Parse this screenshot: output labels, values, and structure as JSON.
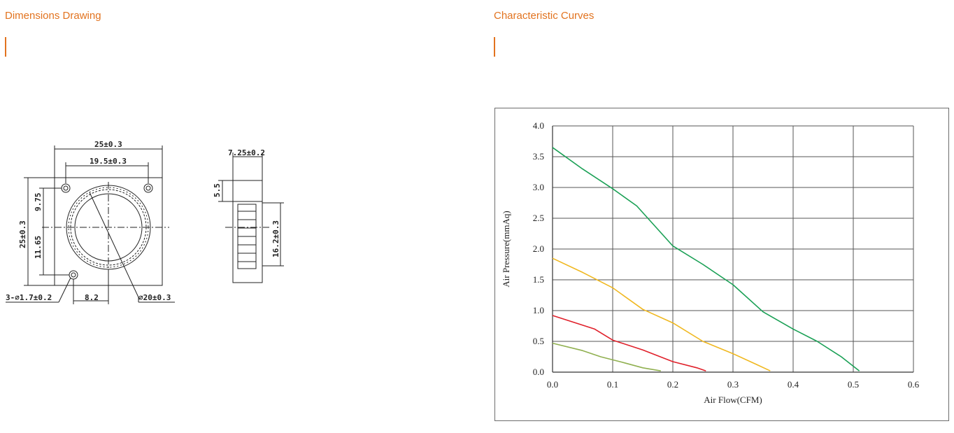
{
  "sections": {
    "dimensions_title": "Dimensions Drawing",
    "curves_title": "Characteristic Curves"
  },
  "drawing": {
    "width_label": "25±0.3",
    "hole_spacing_label": "19.5±0.3",
    "height_label": "25±0.3",
    "upper_offset_label": "9.75",
    "lower_offset_label": "11.65",
    "holes_label": "3-⌀1.7±0.2",
    "hole_x_label": "8.2",
    "bore_label": "⌀20±0.3",
    "thickness_label": "7.25±0.2",
    "lip_label": "5.5",
    "inner_height_label": "16.2±0.3"
  },
  "chart_data": {
    "type": "line",
    "xlabel": "Air Flow(CFM)",
    "ylabel": "Air Pressure(mmAq)",
    "xlim": [
      0,
      0.6
    ],
    "ylim": [
      0,
      4.0
    ],
    "x_ticks": [
      "0.0",
      "0.1",
      "0.2",
      "0.3",
      "0.4",
      "0.5",
      "0.6"
    ],
    "y_ticks": [
      "0.0",
      "0.5",
      "1.0",
      "1.5",
      "2.0",
      "2.5",
      "3.0",
      "3.5",
      "4.0"
    ],
    "grid": true,
    "series": [
      {
        "color": "#1aa055",
        "points": [
          [
            0.0,
            3.65
          ],
          [
            0.05,
            3.3
          ],
          [
            0.1,
            2.98
          ],
          [
            0.14,
            2.7
          ],
          [
            0.2,
            2.05
          ],
          [
            0.25,
            1.75
          ],
          [
            0.3,
            1.42
          ],
          [
            0.35,
            0.98
          ],
          [
            0.4,
            0.7
          ],
          [
            0.44,
            0.5
          ],
          [
            0.48,
            0.25
          ],
          [
            0.51,
            0.02
          ]
        ]
      },
      {
        "color": "#f0b820",
        "points": [
          [
            0.0,
            1.85
          ],
          [
            0.05,
            1.62
          ],
          [
            0.1,
            1.37
          ],
          [
            0.15,
            1.02
          ],
          [
            0.2,
            0.8
          ],
          [
            0.25,
            0.5
          ],
          [
            0.3,
            0.3
          ],
          [
            0.34,
            0.12
          ],
          [
            0.362,
            0.02
          ]
        ]
      },
      {
        "color": "#e0202a",
        "points": [
          [
            0.0,
            0.92
          ],
          [
            0.07,
            0.7
          ],
          [
            0.1,
            0.52
          ],
          [
            0.15,
            0.36
          ],
          [
            0.2,
            0.17
          ],
          [
            0.24,
            0.07
          ],
          [
            0.255,
            0.02
          ]
        ]
      },
      {
        "color": "#90b050",
        "points": [
          [
            0.0,
            0.47
          ],
          [
            0.05,
            0.35
          ],
          [
            0.08,
            0.25
          ],
          [
            0.12,
            0.15
          ],
          [
            0.15,
            0.07
          ],
          [
            0.18,
            0.02
          ]
        ]
      }
    ],
    "colors": {
      "grid": "#555555",
      "axis": "#333333"
    }
  }
}
